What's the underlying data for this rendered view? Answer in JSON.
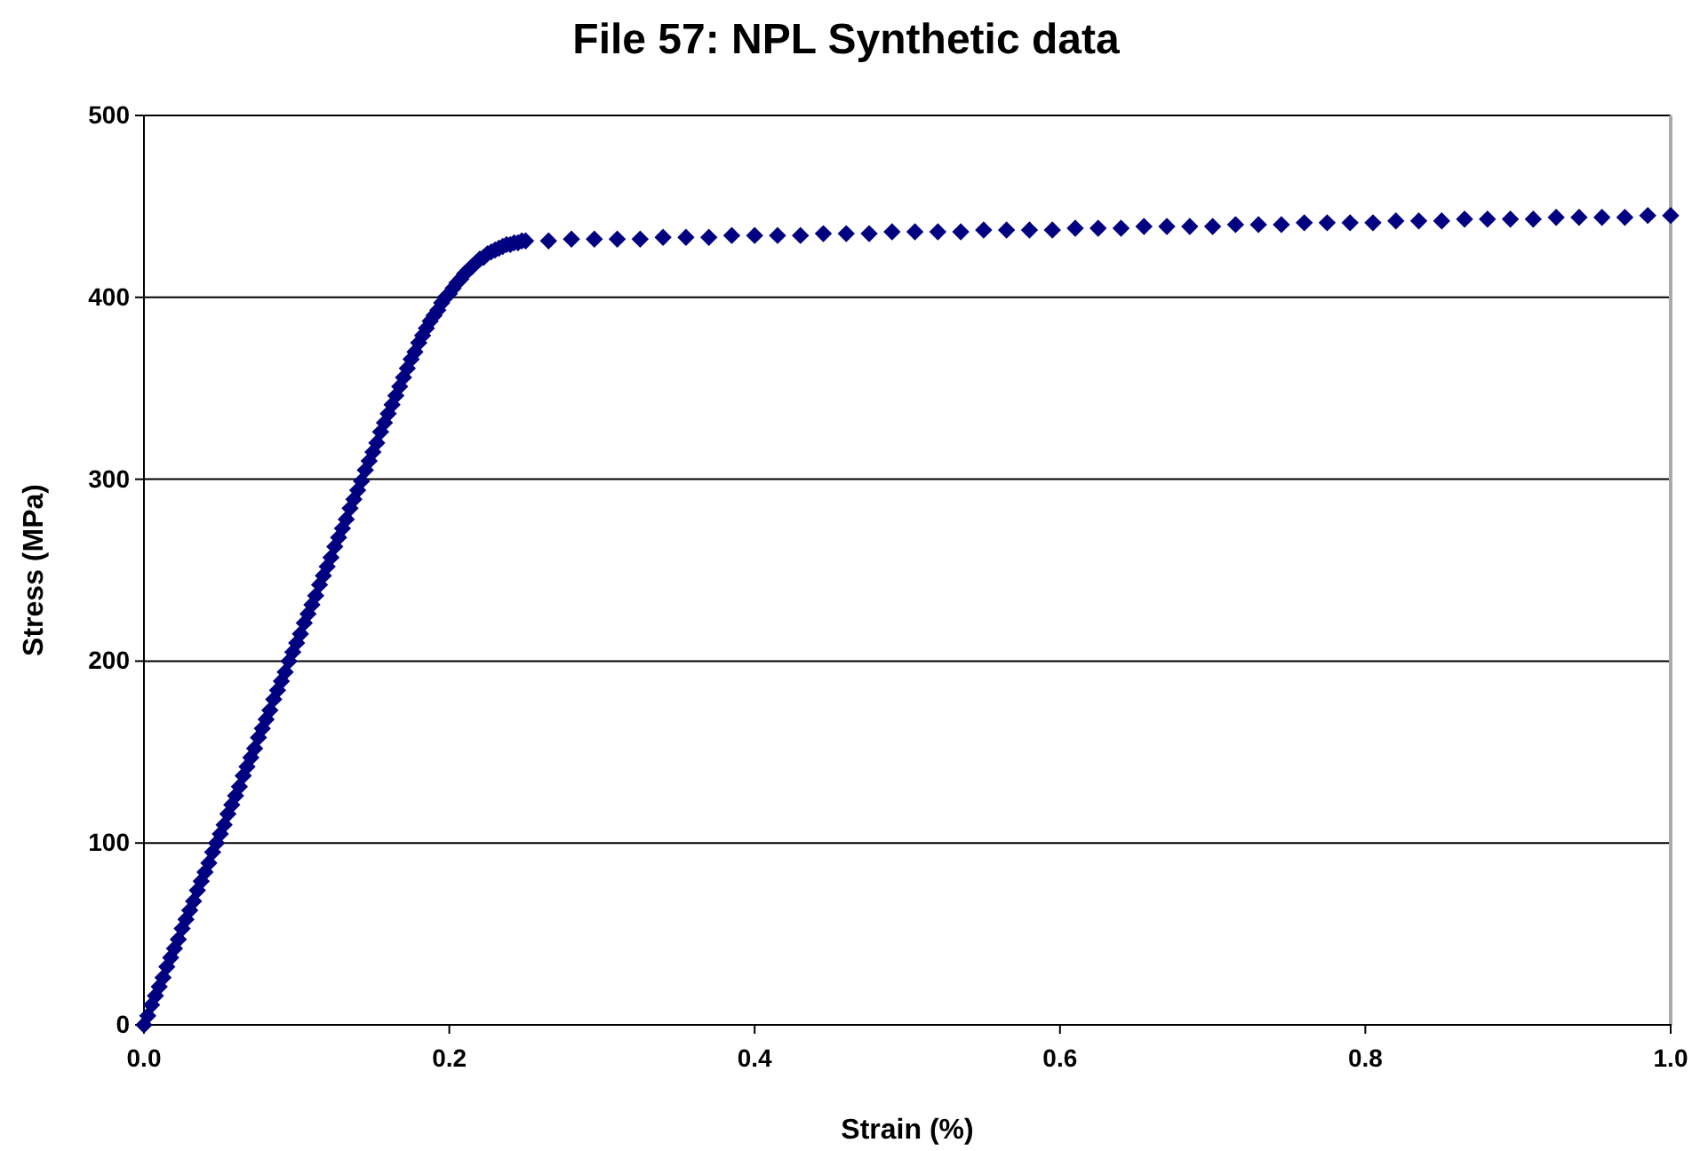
{
  "chart_data": {
    "type": "scatter",
    "title": "File 57: NPL Synthetic data",
    "xlabel": "Strain (%)",
    "ylabel": "Stress (MPa)",
    "xlim": [
      0,
      1
    ],
    "ylim": [
      0,
      500
    ],
    "xticks": [
      {
        "value": 0,
        "label": "0.0"
      },
      {
        "value": 0.2,
        "label": "0.2"
      },
      {
        "value": 0.4,
        "label": "0.4"
      },
      {
        "value": 0.6,
        "label": "0.6"
      },
      {
        "value": 0.8,
        "label": "0.8"
      },
      {
        "value": 1,
        "label": "1.0"
      }
    ],
    "yticks": [
      0,
      100,
      200,
      300,
      400,
      500
    ],
    "grid": "y",
    "marker": "diamond",
    "series": [
      {
        "color": "#000080",
        "x": [
          0,
          0.0025,
          0.005,
          0.0075,
          0.01,
          0.0125,
          0.015,
          0.0175,
          0.02,
          0.0225,
          0.025,
          0.0275,
          0.03,
          0.0325,
          0.035,
          0.0375,
          0.04,
          0.0425,
          0.045,
          0.0475,
          0.05,
          0.0525,
          0.055,
          0.0575,
          0.06,
          0.0625,
          0.065,
          0.0675,
          0.07,
          0.0725,
          0.075,
          0.0775,
          0.08,
          0.0825,
          0.085,
          0.0875,
          0.09,
          0.0925,
          0.095,
          0.0975,
          0.1,
          0.1025,
          0.105,
          0.1075,
          0.11,
          0.1125,
          0.115,
          0.1175,
          0.12,
          0.1225,
          0.125,
          0.1275,
          0.13,
          0.1325,
          0.135,
          0.1375,
          0.14,
          0.1425,
          0.145,
          0.1475,
          0.15,
          0.1525,
          0.155,
          0.1575,
          0.16,
          0.1625,
          0.165,
          0.1675,
          0.17,
          0.1725,
          0.175,
          0.1775,
          0.18,
          0.1825,
          0.185,
          0.1875,
          0.19,
          0.1925,
          0.195,
          0.1975,
          0.2,
          0.2025,
          0.205,
          0.2075,
          0.21,
          0.2125,
          0.215,
          0.2175,
          0.22,
          0.2225,
          0.225,
          0.2275,
          0.23,
          0.2325,
          0.235,
          0.2375,
          0.24,
          0.2425,
          0.245,
          0.2475,
          0.25,
          0.265,
          0.28,
          0.295,
          0.31,
          0.325,
          0.34,
          0.355,
          0.37,
          0.385,
          0.4,
          0.415,
          0.43,
          0.445,
          0.46,
          0.475,
          0.49,
          0.505,
          0.52,
          0.535,
          0.55,
          0.565,
          0.58,
          0.595,
          0.61,
          0.625,
          0.64,
          0.655,
          0.67,
          0.685,
          0.7,
          0.715,
          0.73,
          0.745,
          0.76,
          0.775,
          0.79,
          0.805,
          0.82,
          0.835,
          0.85,
          0.865,
          0.88,
          0.895,
          0.91,
          0.925,
          0.94,
          0.955,
          0.97,
          0.985,
          1.0
        ],
        "values": [
          0,
          5,
          11,
          16,
          21,
          26,
          32,
          37,
          42,
          47,
          53,
          58,
          63,
          68,
          74,
          79,
          84,
          89,
          95,
          100,
          105,
          110,
          116,
          121,
          126,
          131,
          137,
          142,
          147,
          152,
          158,
          163,
          168,
          173,
          179,
          184,
          189,
          194,
          200,
          205,
          210,
          215,
          221,
          226,
          231,
          236,
          242,
          247,
          252,
          257,
          263,
          268,
          273,
          278,
          284,
          289,
          294,
          299,
          305,
          310,
          315,
          320,
          326,
          331,
          336,
          341,
          346,
          351,
          356,
          361,
          366,
          370,
          375,
          379,
          383,
          387,
          390,
          393,
          397,
          400,
          402,
          405,
          408,
          410,
          413,
          415,
          417,
          419,
          421,
          422,
          424,
          425,
          426,
          427,
          428,
          429,
          429,
          430,
          430,
          431,
          431,
          431,
          432,
          432,
          432,
          432,
          433,
          433,
          433,
          434,
          434,
          434,
          434,
          435,
          435,
          435,
          436,
          436,
          436,
          436,
          437,
          437,
          437,
          437,
          438,
          438,
          438,
          439,
          439,
          439,
          439,
          440,
          440,
          440,
          441,
          441,
          441,
          441,
          442,
          442,
          442,
          443,
          443,
          443,
          443,
          444,
          444,
          444,
          444,
          445,
          445
        ]
      }
    ]
  }
}
